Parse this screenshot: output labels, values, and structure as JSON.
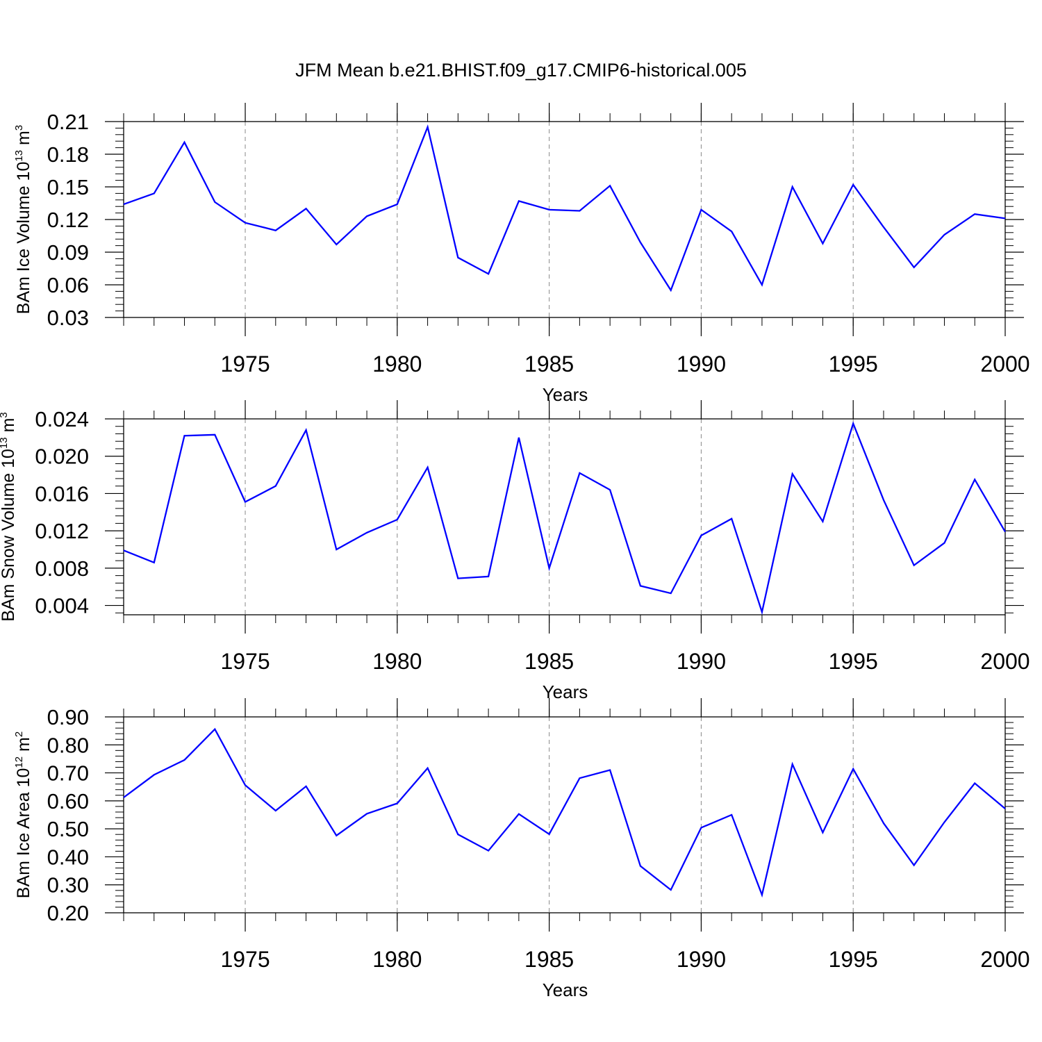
{
  "figure_title": "JFM Mean b.e21.BHIST.f09_g17.CMIP6-historical.005",
  "colors": {
    "line": "#0000ff",
    "axis": "#000000",
    "grid": "#888888"
  },
  "chart_data": [
    {
      "type": "line",
      "ylabel": {
        "text": "BAm Ice Volume 10",
        "exp": "13",
        "unit": " m",
        "unit_exp": "3"
      },
      "xlabel": "Years",
      "xlim": [
        1971,
        2000
      ],
      "ylim": [
        0.03,
        0.21
      ],
      "xticks": [
        1975,
        1980,
        1985,
        1990,
        1995,
        2000
      ],
      "yticks": [
        "0.03",
        "0.06",
        "0.09",
        "0.12",
        "0.15",
        "0.18",
        "0.21"
      ],
      "grid": "vertical dashed at major x ticks",
      "x": [
        1971,
        1972,
        1973,
        1974,
        1975,
        1976,
        1977,
        1978,
        1979,
        1980,
        1981,
        1982,
        1983,
        1984,
        1985,
        1986,
        1987,
        1988,
        1989,
        1990,
        1991,
        1992,
        1993,
        1994,
        1995,
        1996,
        1997,
        1998,
        1999,
        2000
      ],
      "series": [
        {
          "values": [
            0.134,
            0.144,
            0.191,
            0.136,
            0.117,
            0.11,
            0.13,
            0.097,
            0.123,
            0.134,
            0.205,
            0.085,
            0.07,
            0.137,
            0.129,
            0.128,
            0.151,
            0.099,
            0.055,
            0.129,
            0.109,
            0.06,
            0.15,
            0.098,
            0.152,
            0.113,
            0.076,
            0.106,
            0.125,
            0.121
          ]
        }
      ]
    },
    {
      "type": "line",
      "ylabel": {
        "text": "BAm Snow Volume 10",
        "exp": "13",
        "unit": " m",
        "unit_exp": "3"
      },
      "xlabel": "Years",
      "xlim": [
        1971,
        2000
      ],
      "ylim": [
        0.003,
        0.024
      ],
      "xticks": [
        1975,
        1980,
        1985,
        1990,
        1995,
        2000
      ],
      "yticks": [
        "0.004",
        "0.008",
        "0.012",
        "0.016",
        "0.020",
        "0.024"
      ],
      "grid": "vertical dashed at major x ticks",
      "x": [
        1971,
        1972,
        1973,
        1974,
        1975,
        1976,
        1977,
        1978,
        1979,
        1980,
        1981,
        1982,
        1983,
        1984,
        1985,
        1986,
        1987,
        1988,
        1989,
        1990,
        1991,
        1992,
        1993,
        1994,
        1995,
        1996,
        1997,
        1998,
        1999,
        2000
      ],
      "series": [
        {
          "values": [
            0.0099,
            0.0086,
            0.0222,
            0.0223,
            0.0151,
            0.0168,
            0.0228,
            0.01,
            0.0118,
            0.0132,
            0.0188,
            0.0069,
            0.0071,
            0.022,
            0.008,
            0.0182,
            0.0164,
            0.0061,
            0.0053,
            0.0115,
            0.0133,
            0.0033,
            0.0181,
            0.013,
            0.0235,
            0.0153,
            0.0083,
            0.0107,
            0.0175,
            0.0119
          ]
        }
      ]
    },
    {
      "type": "line",
      "ylabel": {
        "text": "BAm Ice Area 10",
        "exp": "12",
        "unit": " m",
        "unit_exp": "2"
      },
      "xlabel": "Years",
      "xlim": [
        1971,
        2000
      ],
      "ylim": [
        0.2,
        0.9
      ],
      "xticks": [
        1975,
        1980,
        1985,
        1990,
        1995,
        2000
      ],
      "yticks": [
        "0.20",
        "0.30",
        "0.40",
        "0.50",
        "0.60",
        "0.70",
        "0.80",
        "0.90"
      ],
      "grid": "vertical dashed at major x ticks",
      "x": [
        1971,
        1972,
        1973,
        1974,
        1975,
        1976,
        1977,
        1978,
        1979,
        1980,
        1981,
        1982,
        1983,
        1984,
        1985,
        1986,
        1987,
        1988,
        1989,
        1990,
        1991,
        1992,
        1993,
        1994,
        1995,
        1996,
        1997,
        1998,
        1999,
        2000
      ],
      "series": [
        {
          "values": [
            0.612,
            0.693,
            0.746,
            0.856,
            0.656,
            0.565,
            0.652,
            0.476,
            0.554,
            0.591,
            0.717,
            0.48,
            0.422,
            0.553,
            0.481,
            0.681,
            0.71,
            0.367,
            0.282,
            0.504,
            0.55,
            0.264,
            0.731,
            0.487,
            0.714,
            0.52,
            0.37,
            0.524,
            0.663,
            0.572
          ]
        }
      ]
    }
  ]
}
